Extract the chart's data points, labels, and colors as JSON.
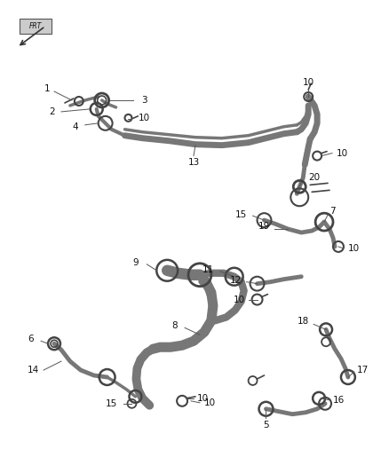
{
  "bg_color": "#ffffff",
  "line_color": "#444444",
  "tube_color": "#777777",
  "component_color": "#444444",
  "fig_width": 4.38,
  "fig_height": 5.33,
  "dpi": 100,
  "tube_lw": 5.0,
  "thin_lw": 2.5
}
